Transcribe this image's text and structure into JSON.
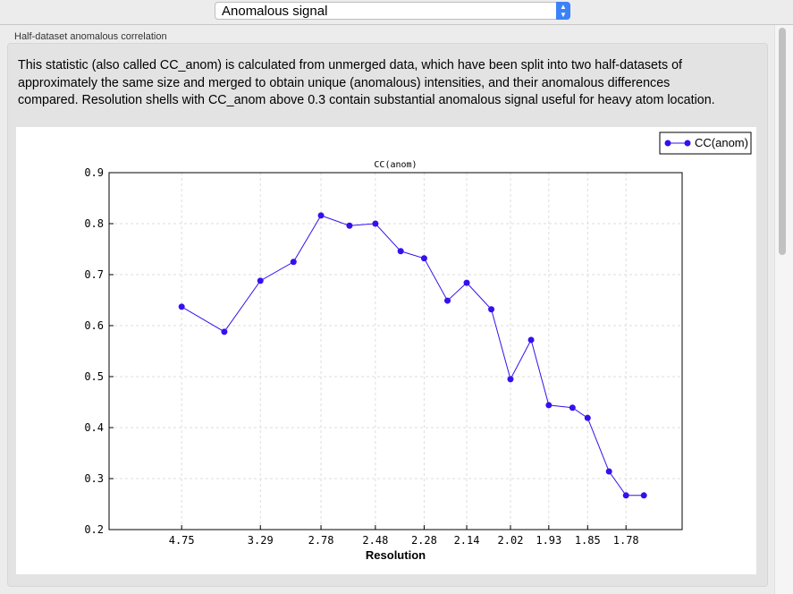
{
  "selector": {
    "value": "Anomalous signal",
    "icon": "updown-chevron-icon"
  },
  "group": {
    "label": "Half-dataset anomalous correlation",
    "description": "This statistic (also called CC_anom) is calculated from unmerged data, which have been split into two half-datasets of approximately the same size and merged to obtain unique (anomalous) intensities, and their anomalous differences compared.  Resolution shells with CC_anom above 0.3 contain substantial anomalous signal useful for heavy atom location."
  },
  "chart_data": {
    "type": "line",
    "title": "CC(anom)",
    "xlabel": "Resolution",
    "ylabel": "",
    "ylim": [
      0.2,
      0.9
    ],
    "yticks": [
      "0.2",
      "0.3",
      "0.4",
      "0.5",
      "0.6",
      "0.7",
      "0.8",
      "0.9"
    ],
    "xticks": [
      "4.75",
      "3.29",
      "2.78",
      "2.48",
      "2.28",
      "2.14",
      "2.02",
      "1.93",
      "1.85",
      "1.78"
    ],
    "x_scale": "1/d^2",
    "grid": true,
    "legend": "top-right",
    "series": [
      {
        "name": "CC(anom)",
        "color": "#3311ee",
        "x": [
          4.75,
          3.77,
          3.29,
          2.98,
          2.78,
          2.61,
          2.48,
          2.37,
          2.28,
          2.2,
          2.14,
          2.07,
          2.02,
          1.97,
          1.93,
          1.88,
          1.85,
          1.81,
          1.78,
          1.75
        ],
        "values": [
          0.637,
          0.588,
          0.688,
          0.725,
          0.816,
          0.796,
          0.8,
          0.746,
          0.732,
          0.649,
          0.684,
          0.632,
          0.495,
          0.572,
          0.444,
          0.439,
          0.419,
          0.314,
          0.267,
          0.267
        ]
      }
    ]
  }
}
